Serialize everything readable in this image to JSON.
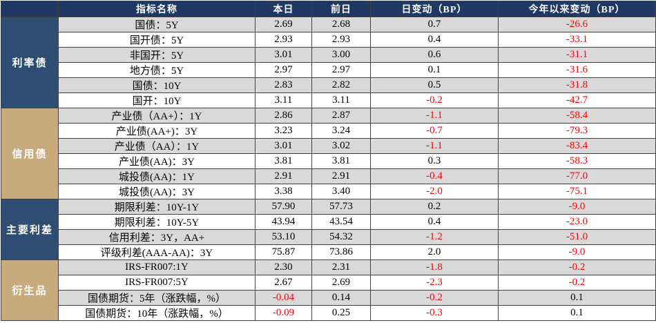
{
  "table": {
    "header": [
      "指标名称",
      "本日",
      "前日",
      "日变动（BP）",
      "今年以来变动（BP）"
    ],
    "header_color": "#1f3864",
    "stripe_color": "#d9d9d9",
    "negative_color": "#ff0000",
    "groups": [
      {
        "label": "利率债",
        "color": "#2d4d73",
        "rows": [
          [
            "国债：5Y",
            "2.69",
            "2.68",
            "0.7",
            "-26.6"
          ],
          [
            "国开债：5Y",
            "2.93",
            "2.93",
            "0.4",
            "-33.1"
          ],
          [
            "非国开：5Y",
            "3.01",
            "3.00",
            "0.6",
            "-31.1"
          ],
          [
            "地方债：5Y",
            "2.97",
            "2.97",
            "0.1",
            "-31.6"
          ],
          [
            "国债：10Y",
            "2.83",
            "2.82",
            "0.5",
            "-31.8"
          ],
          [
            "国开：10Y",
            "3.11",
            "3.11",
            "-0.2",
            "-42.7"
          ]
        ]
      },
      {
        "label": "信用债",
        "color": "#c8aa7c",
        "rows": [
          [
            "产业债（AA+）：1Y",
            "2.86",
            "2.87",
            "-1.1",
            "-58.4"
          ],
          [
            "产业债(AA+)：3Y",
            "3.23",
            "3.24",
            "-0.7",
            "-79.3"
          ],
          [
            "产业债（AA）：1Y",
            "3.01",
            "3.02",
            "-1.1",
            "-83.4"
          ],
          [
            "产业债(AA)：3Y",
            "3.81",
            "3.81",
            "0.3",
            "-58.3"
          ],
          [
            "城投债(AA)：1Y",
            "2.91",
            "2.91",
            "-0.4",
            "-77.0"
          ],
          [
            "城投债(AA)：3Y",
            "3.38",
            "3.40",
            "-2.0",
            "-75.1"
          ]
        ]
      },
      {
        "label": "主要利差",
        "color": "#2d4d73",
        "rows": [
          [
            "期限利差：10Y-1Y",
            "57.90",
            "57.73",
            "0.2",
            "-9.0"
          ],
          [
            "期限利差：10Y-5Y",
            "43.94",
            "43.54",
            "0.4",
            "-23.0"
          ],
          [
            "信用利差：3Y，AA+",
            "53.10",
            "54.32",
            "-1.2",
            "-51.0"
          ],
          [
            "评级利差(AAA-AA)：3Y",
            "75.87",
            "73.86",
            "2.0",
            "-9.0"
          ]
        ]
      },
      {
        "label": "衍生品",
        "color": "#c8aa7c",
        "rows": [
          [
            "IRS-FR007:1Y",
            "2.30",
            "2.31",
            "-1.8",
            "-0.2"
          ],
          [
            "IRS-FR007:5Y",
            "2.67",
            "2.69",
            "-2.3",
            "-0.2"
          ],
          [
            "国债期货：5年（涨跌幅，%）",
            "-0.04",
            "0.14",
            "-0.2",
            "0.1"
          ],
          [
            "国债期货：10年（涨跌幅，%）",
            "-0.09",
            "0.25",
            "-0.3",
            "0.1"
          ]
        ]
      }
    ]
  }
}
